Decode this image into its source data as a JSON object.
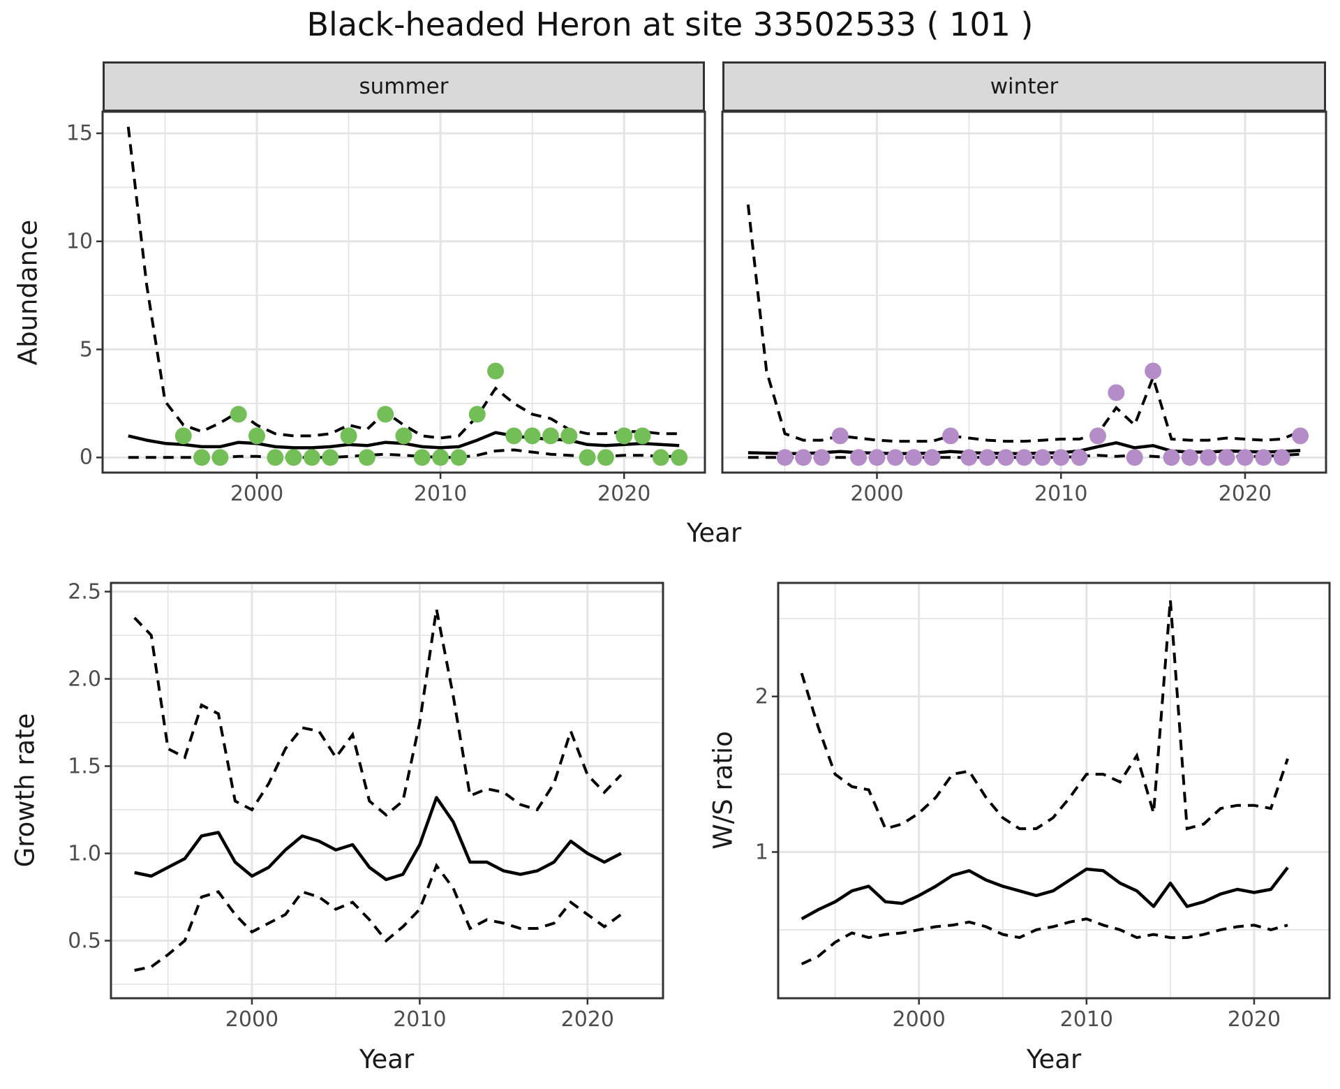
{
  "title": "Black-headed Heron at site 33502533 ( 101 )",
  "colors": {
    "summer_point": "#74BE58",
    "winter_point": "#B48CC8",
    "line": "#000000",
    "strip_bg": "#D9D9D9",
    "panel_border": "#333333",
    "grid": "#E4E4E4",
    "tick_text": "#4D4D4D",
    "title_text": "#111111"
  },
  "chart_data": [
    {
      "id": "abundance_summer",
      "type": "line",
      "facet_label": "summer",
      "ylabel": "Abundance",
      "xlabel": "Year",
      "xlim": [
        1991.6,
        2024.4
      ],
      "ylim": [
        -0.7,
        16.0
      ],
      "x_major_ticks": [
        2000,
        2010,
        2020
      ],
      "x_tick_labels": [
        "2000",
        "2010",
        "2020"
      ],
      "x_minor_ticks": [
        1995,
        2005,
        2015
      ],
      "y_major_ticks": [
        0,
        5,
        10,
        15
      ],
      "y_tick_labels": [
        "0",
        "5",
        "10",
        "15"
      ],
      "y_minor_ticks": [
        2.5,
        7.5,
        12.5
      ],
      "grid": true,
      "legend": "none",
      "point_color": "#74BE58",
      "series": {
        "years": [
          1993,
          1994,
          1995,
          1996,
          1997,
          1998,
          1999,
          2000,
          2001,
          2002,
          2003,
          2004,
          2005,
          2006,
          2007,
          2008,
          2009,
          2010,
          2011,
          2012,
          2013,
          2014,
          2015,
          2016,
          2017,
          2018,
          2019,
          2020,
          2021,
          2022,
          2023
        ],
        "mean": [
          1.0,
          0.8,
          0.65,
          0.6,
          0.5,
          0.5,
          0.7,
          0.65,
          0.5,
          0.45,
          0.45,
          0.5,
          0.6,
          0.55,
          0.7,
          0.65,
          0.5,
          0.45,
          0.5,
          0.8,
          1.15,
          1.0,
          0.9,
          0.85,
          0.8,
          0.6,
          0.55,
          0.6,
          0.65,
          0.6,
          0.55
        ],
        "upper_ci": [
          15.3,
          8.0,
          2.6,
          1.5,
          1.2,
          1.6,
          2.1,
          1.5,
          1.1,
          1.0,
          1.0,
          1.1,
          1.5,
          1.3,
          2.1,
          1.5,
          1.0,
          0.9,
          1.0,
          1.9,
          3.2,
          2.5,
          2.0,
          1.8,
          1.3,
          1.1,
          1.1,
          1.2,
          1.2,
          1.1,
          1.1
        ],
        "lower_ci": [
          0,
          0,
          0,
          0,
          0,
          0,
          0.05,
          0.05,
          0,
          0,
          0,
          0,
          0.05,
          0.1,
          0.15,
          0.1,
          0.05,
          0,
          0,
          0.1,
          0.3,
          0.35,
          0.25,
          0.15,
          0.1,
          0.05,
          0.05,
          0.1,
          0.1,
          0.05,
          0.05
        ],
        "points_x": [
          1996,
          1997,
          1998,
          1999,
          2000,
          2001,
          2002,
          2003,
          2004,
          2005,
          2006,
          2007,
          2008,
          2009,
          2010,
          2011,
          2012,
          2013,
          2014,
          2015,
          2016,
          2017,
          2018,
          2019,
          2020,
          2021,
          2022,
          2023
        ],
        "points_y": [
          1,
          0,
          0,
          2,
          1,
          0,
          0,
          0,
          0,
          1,
          0,
          2,
          1,
          0,
          0,
          0,
          2,
          4,
          1,
          1,
          1,
          1,
          0,
          0,
          1,
          1,
          0,
          0
        ]
      }
    },
    {
      "id": "abundance_winter",
      "type": "line",
      "facet_label": "winter",
      "ylabel": null,
      "xlabel": "Year",
      "xlim": [
        1991.6,
        2024.4
      ],
      "ylim": [
        -0.7,
        16.0
      ],
      "x_major_ticks": [
        2000,
        2010,
        2020
      ],
      "x_tick_labels": [
        "2000",
        "2010",
        "2020"
      ],
      "x_minor_ticks": [
        1995,
        2005,
        2015
      ],
      "y_major_ticks": [
        0,
        5,
        10,
        15
      ],
      "y_tick_labels": null,
      "y_minor_ticks": [
        2.5,
        7.5,
        12.5
      ],
      "grid": true,
      "legend": "none",
      "point_color": "#B48CC8",
      "series": {
        "years": [
          1993,
          1994,
          1995,
          1996,
          1997,
          1998,
          1999,
          2000,
          2001,
          2002,
          2003,
          2004,
          2005,
          2006,
          2007,
          2008,
          2009,
          2010,
          2011,
          2012,
          2013,
          2014,
          2015,
          2016,
          2017,
          2018,
          2019,
          2020,
          2021,
          2022,
          2023
        ],
        "mean": [
          0.22,
          0.2,
          0.18,
          0.18,
          0.22,
          0.28,
          0.22,
          0.2,
          0.18,
          0.18,
          0.2,
          0.28,
          0.22,
          0.2,
          0.18,
          0.18,
          0.2,
          0.22,
          0.3,
          0.5,
          0.68,
          0.45,
          0.55,
          0.3,
          0.25,
          0.25,
          0.3,
          0.28,
          0.25,
          0.28,
          0.32
        ],
        "upper_ci": [
          11.7,
          4.0,
          1.1,
          0.8,
          0.8,
          1.0,
          0.9,
          0.8,
          0.75,
          0.75,
          0.75,
          1.0,
          0.9,
          0.8,
          0.75,
          0.75,
          0.8,
          0.85,
          0.85,
          1.1,
          2.3,
          1.5,
          3.7,
          0.85,
          0.8,
          0.8,
          0.9,
          0.85,
          0.8,
          0.85,
          1.2
        ],
        "lower_ci": [
          0,
          0,
          0,
          0,
          0,
          0,
          0,
          0,
          0,
          0,
          0,
          0,
          0,
          0,
          0,
          0,
          0,
          0,
          0.05,
          0.1,
          0.05,
          0.1,
          0.05,
          0,
          0,
          0.05,
          0.05,
          0.05,
          0.05,
          0.1,
          0.15
        ],
        "points_x": [
          1995,
          1996,
          1997,
          1998,
          1999,
          2000,
          2001,
          2002,
          2003,
          2004,
          2005,
          2006,
          2007,
          2008,
          2009,
          2010,
          2011,
          2012,
          2013,
          2014,
          2015,
          2016,
          2017,
          2018,
          2019,
          2020,
          2021,
          2022,
          2023
        ],
        "points_y": [
          0,
          0,
          0,
          1,
          0,
          0,
          0,
          0,
          0,
          1,
          0,
          0,
          0,
          0,
          0,
          0,
          0,
          1,
          3,
          0,
          4,
          0,
          0,
          0,
          0,
          0,
          0,
          0,
          1
        ]
      }
    },
    {
      "id": "growth_rate",
      "type": "line",
      "facet_label": null,
      "ylabel": "Growth rate",
      "xlabel": "Year",
      "xlim": [
        1991.6,
        2024.5
      ],
      "ylim": [
        0.17,
        2.55
      ],
      "x_major_ticks": [
        2000,
        2010,
        2020
      ],
      "x_tick_labels": [
        "2000",
        "2010",
        "2020"
      ],
      "x_minor_ticks": [
        1995,
        2005,
        2015
      ],
      "y_major_ticks": [
        0.5,
        1.0,
        1.5,
        2.0,
        2.5
      ],
      "y_tick_labels": [
        "0.5",
        "1.0",
        "1.5",
        "2.0",
        "2.5"
      ],
      "y_minor_ticks": [
        0.25,
        0.75,
        1.25,
        1.75,
        2.25
      ],
      "grid": true,
      "legend": "none",
      "point_color": null,
      "series": {
        "years": [
          1993,
          1994,
          1995,
          1996,
          1997,
          1998,
          1999,
          2000,
          2001,
          2002,
          2003,
          2004,
          2005,
          2006,
          2007,
          2008,
          2009,
          2010,
          2011,
          2012,
          2013,
          2014,
          2015,
          2016,
          2017,
          2018,
          2019,
          2020,
          2021,
          2022
        ],
        "mean": [
          0.89,
          0.87,
          0.92,
          0.97,
          1.1,
          1.12,
          0.95,
          0.87,
          0.92,
          1.02,
          1.1,
          1.07,
          1.02,
          1.05,
          0.92,
          0.85,
          0.88,
          1.05,
          1.32,
          1.18,
          0.95,
          0.95,
          0.9,
          0.88,
          0.9,
          0.95,
          1.07,
          1.0,
          0.95,
          1.0
        ],
        "upper_ci": [
          2.35,
          2.25,
          1.6,
          1.55,
          1.85,
          1.8,
          1.3,
          1.25,
          1.4,
          1.6,
          1.72,
          1.7,
          1.55,
          1.68,
          1.3,
          1.22,
          1.3,
          1.75,
          2.4,
          1.9,
          1.33,
          1.37,
          1.35,
          1.28,
          1.25,
          1.4,
          1.7,
          1.45,
          1.35,
          1.45
        ],
        "lower_ci": [
          0.33,
          0.35,
          0.42,
          0.5,
          0.75,
          0.78,
          0.65,
          0.55,
          0.6,
          0.65,
          0.78,
          0.75,
          0.68,
          0.72,
          0.62,
          0.5,
          0.58,
          0.68,
          0.93,
          0.8,
          0.57,
          0.62,
          0.6,
          0.57,
          0.57,
          0.6,
          0.72,
          0.65,
          0.58,
          0.65
        ],
        "points_x": [],
        "points_y": []
      }
    },
    {
      "id": "ws_ratio",
      "type": "line",
      "facet_label": null,
      "ylabel": "W/S ratio",
      "xlabel": "Year",
      "xlim": [
        1991.6,
        2024.5
      ],
      "ylim": [
        0.06,
        2.73
      ],
      "x_major_ticks": [
        2000,
        2010,
        2020
      ],
      "x_tick_labels": [
        "2000",
        "2010",
        "2020"
      ],
      "x_minor_ticks": [
        1995,
        2005,
        2015
      ],
      "y_major_ticks": [
        1,
        2
      ],
      "y_tick_labels": [
        "1",
        "2"
      ],
      "y_minor_ticks": [
        0.5,
        1.5,
        2.5
      ],
      "grid": true,
      "legend": "none",
      "point_color": null,
      "series": {
        "years": [
          1993,
          1994,
          1995,
          1996,
          1997,
          1998,
          1999,
          2000,
          2001,
          2002,
          2003,
          2004,
          2005,
          2006,
          2007,
          2008,
          2009,
          2010,
          2011,
          2012,
          2013,
          2014,
          2015,
          2016,
          2017,
          2018,
          2019,
          2020,
          2021,
          2022
        ],
        "mean": [
          0.57,
          0.63,
          0.68,
          0.75,
          0.78,
          0.68,
          0.67,
          0.72,
          0.78,
          0.85,
          0.88,
          0.82,
          0.78,
          0.75,
          0.72,
          0.75,
          0.82,
          0.89,
          0.88,
          0.8,
          0.75,
          0.65,
          0.8,
          0.65,
          0.68,
          0.73,
          0.76,
          0.74,
          0.76,
          0.9
        ],
        "upper_ci": [
          2.15,
          1.8,
          1.5,
          1.42,
          1.4,
          1.15,
          1.18,
          1.25,
          1.35,
          1.5,
          1.52,
          1.35,
          1.22,
          1.15,
          1.15,
          1.22,
          1.35,
          1.5,
          1.5,
          1.45,
          1.62,
          1.25,
          2.62,
          1.15,
          1.18,
          1.28,
          1.3,
          1.3,
          1.28,
          1.6
        ],
        "lower_ci": [
          0.28,
          0.33,
          0.42,
          0.48,
          0.45,
          0.47,
          0.48,
          0.5,
          0.52,
          0.53,
          0.55,
          0.52,
          0.47,
          0.45,
          0.5,
          0.52,
          0.55,
          0.57,
          0.53,
          0.5,
          0.45,
          0.47,
          0.45,
          0.45,
          0.47,
          0.5,
          0.52,
          0.53,
          0.5,
          0.53
        ],
        "points_x": [],
        "points_y": []
      }
    }
  ]
}
